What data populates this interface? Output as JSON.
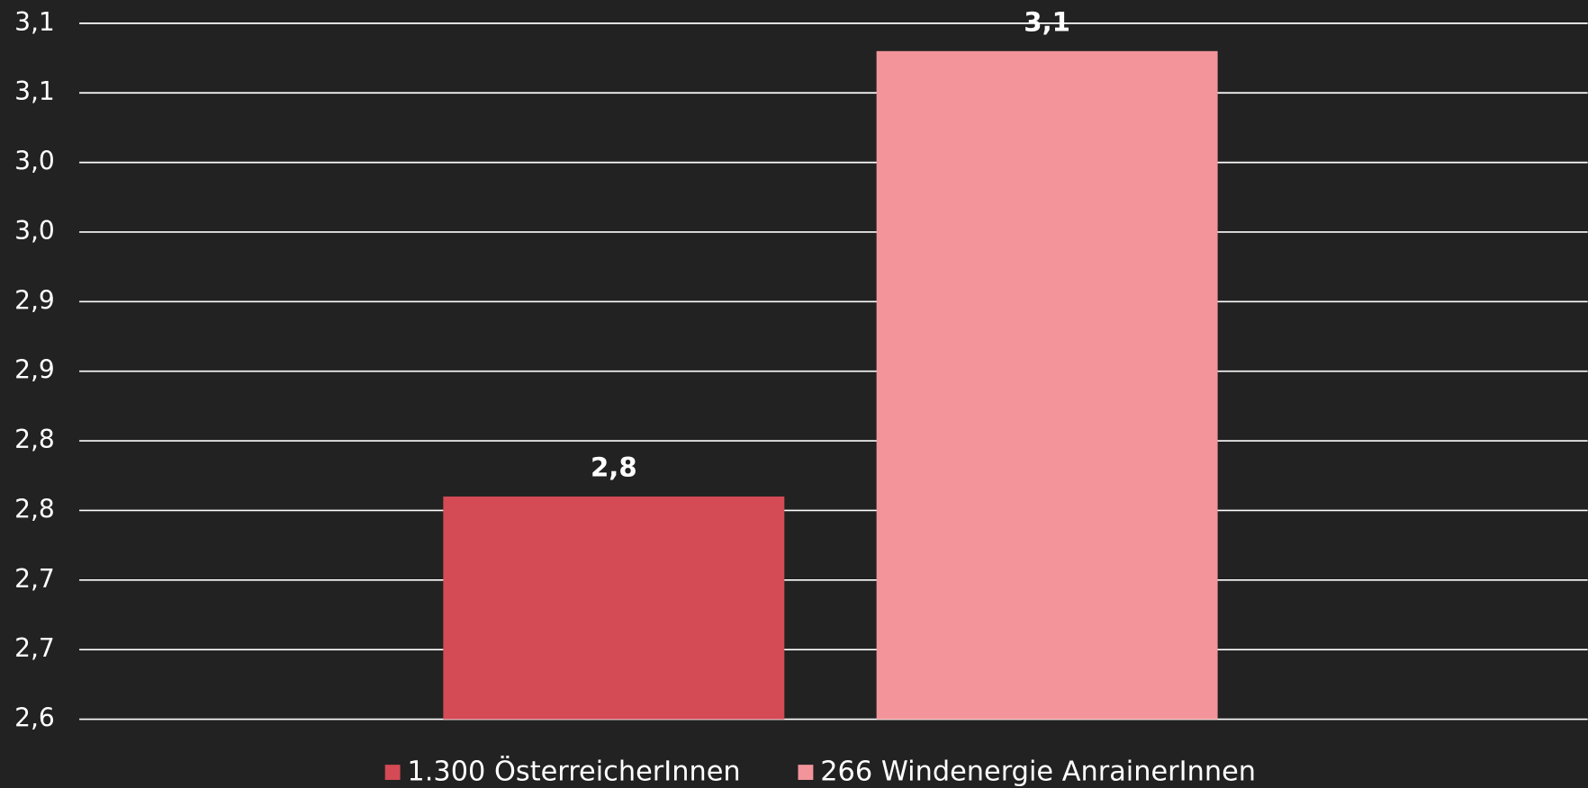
{
  "chart_data": {
    "type": "bar",
    "categories": [
      null
    ],
    "series": [
      {
        "name": "1.300 ÖsterreicherInnen",
        "color": "#d44a55",
        "values": [
          2.76
        ],
        "value_labels": [
          "2,8"
        ]
      },
      {
        "name": "266 Windenergie AnrainerInnen",
        "color": "#f2949a",
        "values": [
          3.08
        ],
        "value_labels": [
          "3,1"
        ]
      }
    ],
    "ylim": [
      2.6,
      3.1
    ],
    "yticks": [
      {
        "value": 2.6,
        "label": "2,6"
      },
      {
        "value": 2.65,
        "label": "2,7"
      },
      {
        "value": 2.7,
        "label": "2,7"
      },
      {
        "value": 2.75,
        "label": "2,8"
      },
      {
        "value": 2.8,
        "label": "2,8"
      },
      {
        "value": 2.85,
        "label": "2,9"
      },
      {
        "value": 2.9,
        "label": "2,9"
      },
      {
        "value": 2.95,
        "label": "3,0"
      },
      {
        "value": 3.0,
        "label": "3,0"
      },
      {
        "value": 3.05,
        "label": "3,1"
      },
      {
        "value": 3.1,
        "label": "3,1"
      }
    ],
    "grid": true,
    "legend": "bottom"
  }
}
